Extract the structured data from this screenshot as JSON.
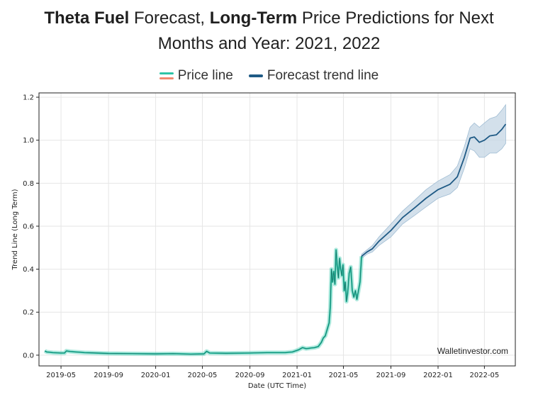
{
  "title": {
    "part1": "Theta Fuel",
    "part2": " Forecast, ",
    "part3": "Long-Term",
    "part4": " Price Predictions for Next",
    "line2": "Months and Year: 2021, 2022"
  },
  "legend": {
    "price_label": "Price line",
    "forecast_label": "Forecast trend line"
  },
  "watermark": "Walletinvestor.com",
  "colors": {
    "price_line": "#2ec4a6",
    "price_line_alt": "#f08a70",
    "forecast_line": "#1f5a85",
    "forecast_band": "#c4d6e4",
    "grid": "#e6e6e6",
    "axis": "#222222"
  },
  "chart_data": {
    "type": "line",
    "xlabel": "Date (UTC Time)",
    "ylabel": "Trend Line (Long Term)",
    "ylim": [
      -0.05,
      1.22
    ],
    "xlim": [
      "2019-03-05",
      "2022-07-20"
    ],
    "grid": true,
    "x_ticks": [
      "2019-05",
      "2019-09",
      "2020-01",
      "2020-05",
      "2020-09",
      "2021-01",
      "2021-05",
      "2021-09",
      "2022-01",
      "2022-05"
    ],
    "y_ticks": [
      0.0,
      0.2,
      0.4,
      0.6,
      0.8,
      1.0,
      1.2
    ],
    "y_tick_labels": [
      "0.0",
      "0.2",
      "0.4",
      "0.6",
      "0.8",
      "1.0",
      "1.2"
    ],
    "series": [
      {
        "name": "Price line",
        "points": [
          [
            "2019-03-20",
            0.02
          ],
          [
            "2019-03-25",
            0.015
          ],
          [
            "2019-04-10",
            0.012
          ],
          [
            "2019-04-30",
            0.01
          ],
          [
            "2019-05-10",
            0.01
          ],
          [
            "2019-05-15",
            0.02
          ],
          [
            "2019-05-25",
            0.017
          ],
          [
            "2019-07-01",
            0.012
          ],
          [
            "2019-09-01",
            0.008
          ],
          [
            "2019-11-01",
            0.007
          ],
          [
            "2020-01-01",
            0.006
          ],
          [
            "2020-02-15",
            0.007
          ],
          [
            "2020-04-01",
            0.005
          ],
          [
            "2020-05-05",
            0.006
          ],
          [
            "2020-05-12",
            0.018
          ],
          [
            "2020-05-20",
            0.01
          ],
          [
            "2020-07-01",
            0.009
          ],
          [
            "2020-09-01",
            0.01
          ],
          [
            "2020-10-15",
            0.012
          ],
          [
            "2020-12-01",
            0.012
          ],
          [
            "2020-12-20",
            0.015
          ],
          [
            "2021-01-05",
            0.025
          ],
          [
            "2021-01-15",
            0.035
          ],
          [
            "2021-01-25",
            0.03
          ],
          [
            "2021-02-05",
            0.033
          ],
          [
            "2021-02-15",
            0.035
          ],
          [
            "2021-02-25",
            0.04
          ],
          [
            "2021-03-05",
            0.06
          ],
          [
            "2021-03-10",
            0.08
          ],
          [
            "2021-03-15",
            0.09
          ],
          [
            "2021-03-20",
            0.12
          ],
          [
            "2021-03-25",
            0.15
          ],
          [
            "2021-03-28",
            0.22
          ],
          [
            "2021-03-31",
            0.4
          ],
          [
            "2021-04-03",
            0.34
          ],
          [
            "2021-04-06",
            0.39
          ],
          [
            "2021-04-09",
            0.33
          ],
          [
            "2021-04-12",
            0.49
          ],
          [
            "2021-04-15",
            0.42
          ],
          [
            "2021-04-18",
            0.36
          ],
          [
            "2021-04-21",
            0.45
          ],
          [
            "2021-04-24",
            0.4
          ],
          [
            "2021-04-27",
            0.37
          ],
          [
            "2021-04-30",
            0.42
          ],
          [
            "2021-05-03",
            0.3
          ],
          [
            "2021-05-06",
            0.34
          ],
          [
            "2021-05-09",
            0.25
          ],
          [
            "2021-05-12",
            0.29
          ],
          [
            "2021-05-16",
            0.38
          ],
          [
            "2021-05-20",
            0.41
          ],
          [
            "2021-05-24",
            0.3
          ],
          [
            "2021-05-28",
            0.27
          ],
          [
            "2021-06-01",
            0.3
          ],
          [
            "2021-06-05",
            0.26
          ],
          [
            "2021-06-09",
            0.3
          ],
          [
            "2021-06-13",
            0.34
          ],
          [
            "2021-06-17",
            0.46
          ]
        ]
      },
      {
        "name": "Forecast trend line",
        "points": [
          [
            "2021-06-17",
            0.46
          ],
          [
            "2021-07-01",
            0.48
          ],
          [
            "2021-07-15",
            0.495
          ],
          [
            "2021-08-01",
            0.53
          ],
          [
            "2021-09-01",
            0.58
          ],
          [
            "2021-10-01",
            0.64
          ],
          [
            "2021-11-01",
            0.685
          ],
          [
            "2021-12-01",
            0.73
          ],
          [
            "2022-01-01",
            0.77
          ],
          [
            "2022-02-01",
            0.795
          ],
          [
            "2022-02-20",
            0.83
          ],
          [
            "2022-03-10",
            0.92
          ],
          [
            "2022-03-25",
            1.01
          ],
          [
            "2022-04-05",
            1.015
          ],
          [
            "2022-04-18",
            0.99
          ],
          [
            "2022-05-01",
            1.0
          ],
          [
            "2022-05-15",
            1.02
          ],
          [
            "2022-06-01",
            1.025
          ],
          [
            "2022-06-15",
            1.05
          ],
          [
            "2022-06-25",
            1.075
          ]
        ],
        "band_upper": [
          0.47,
          0.49,
          0.51,
          0.55,
          0.61,
          0.67,
          0.72,
          0.77,
          0.81,
          0.84,
          0.88,
          0.97,
          1.06,
          1.08,
          1.06,
          1.08,
          1.1,
          1.11,
          1.14,
          1.165
        ],
        "band_lower": [
          0.45,
          0.47,
          0.48,
          0.51,
          0.55,
          0.61,
          0.65,
          0.69,
          0.73,
          0.75,
          0.78,
          0.87,
          0.96,
          0.95,
          0.92,
          0.92,
          0.94,
          0.94,
          0.96,
          0.985
        ]
      }
    ]
  }
}
